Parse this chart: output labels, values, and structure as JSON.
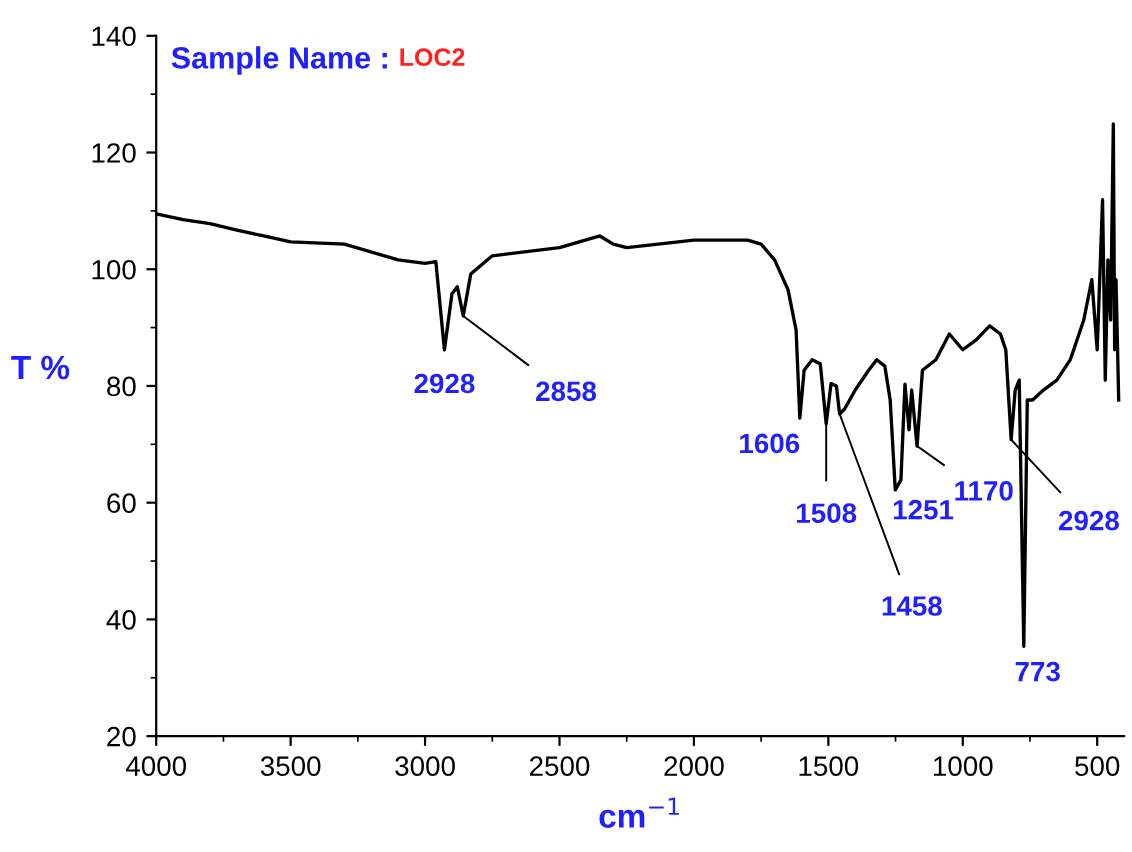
{
  "chart_data": {
    "type": "line",
    "title": "Sample Name :",
    "subtitle": "LOC2",
    "xlabel": "cm$^{−1}$",
    "ylabel": "T %",
    "x": [
      4000,
      3900,
      3800,
      3700,
      3600,
      3500,
      3300,
      3100,
      3000,
      2960,
      2928,
      2900,
      2880,
      2858,
      2830,
      2750,
      2500,
      2350,
      2300,
      2250,
      2000,
      1800,
      1750,
      1700,
      1650,
      1620,
      1606,
      1590,
      1560,
      1530,
      1508,
      1490,
      1470,
      1458,
      1440,
      1400,
      1350,
      1320,
      1290,
      1270,
      1251,
      1230,
      1215,
      1200,
      1190,
      1170,
      1150,
      1100,
      1050,
      1000,
      950,
      900,
      860,
      840,
      820,
      805,
      790,
      773,
      760,
      740,
      700,
      650,
      600,
      550,
      520,
      500,
      480,
      470,
      460,
      450,
      440,
      435,
      430,
      420
    ],
    "series": [
      {
        "color": "#000000",
        "values": [
          109.5,
          108.5,
          107.8,
          106.7,
          105.7,
          104.7,
          104.3,
          101.6,
          101,
          101.3,
          86.2,
          95.8,
          97,
          92,
          99.2,
          102.3,
          103.7,
          105.7,
          104.3,
          103.7,
          105,
          105,
          104.3,
          101.6,
          96.5,
          89.6,
          74.5,
          82.7,
          84.5,
          83.8,
          73.5,
          80.4,
          80,
          75.2,
          76,
          79.3,
          82.7,
          84.5,
          83.4,
          77.6,
          62.2,
          63.9,
          80.3,
          72.5,
          79.3,
          69.7,
          82.7,
          84.5,
          88.9,
          86.2,
          87.9,
          90.3,
          88.9,
          86.2,
          70.8,
          79.3,
          81,
          35.4,
          77.6,
          77.6,
          79.3,
          81,
          84.5,
          91.3,
          98.2,
          86.2,
          111.9,
          81,
          101.6,
          91.3,
          124.9,
          86.2,
          98.2,
          77.6
        ]
      }
    ],
    "xlim": [
      4000,
      400
    ],
    "xticks": [
      4000,
      3500,
      3000,
      2500,
      2000,
      1500,
      1000,
      500
    ],
    "ylim": [
      20,
      140
    ],
    "yticks": [
      20,
      40,
      60,
      80,
      100,
      120,
      140
    ],
    "grid": false,
    "annotations": [
      {
        "text": "2928",
        "x": 2928,
        "y": 86.2
      },
      {
        "text": "2858",
        "x": 2858,
        "y": 92
      },
      {
        "text": "1606",
        "x": 1606,
        "y": 74.5
      },
      {
        "text": "1508",
        "x": 1508,
        "y": 73.5
      },
      {
        "text": "1458",
        "x": 1458,
        "y": 75.2
      },
      {
        "text": "1251",
        "x": 1251,
        "y": 62.2
      },
      {
        "text": "1170",
        "x": 1170,
        "y": 69.7
      },
      {
        "text": "2928",
        "x": 820,
        "y": 70.8
      },
      {
        "text": "773",
        "x": 773,
        "y": 35.4
      }
    ]
  }
}
